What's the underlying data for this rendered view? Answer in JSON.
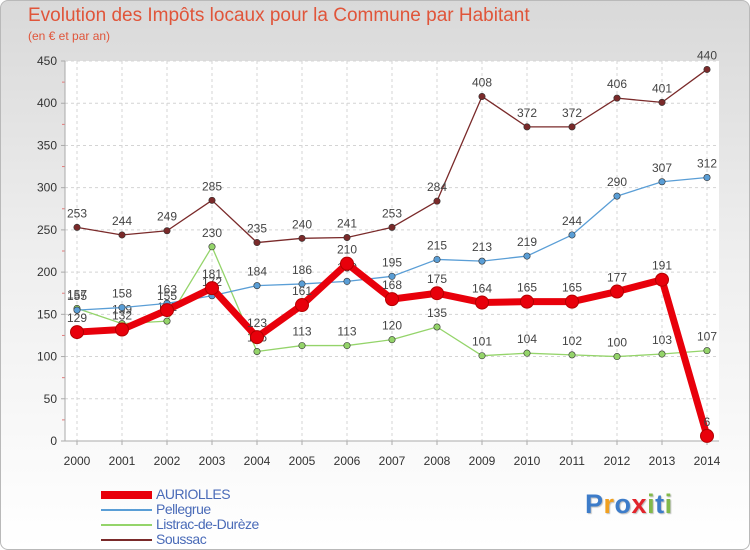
{
  "title": "Evolution des Impôts locaux pour la Commune par Habitant",
  "subtitle": "(en € et par an)",
  "brand": {
    "letters": [
      "P",
      "r",
      "o",
      "x",
      "i",
      "t",
      "i"
    ],
    "colors": [
      "#3d7cc9",
      "#f0a020",
      "#3d7cc9",
      "#e2242b",
      "#82b94a",
      "#3d7cc9",
      "#82b94a"
    ]
  },
  "chart_data": {
    "type": "line",
    "x": [
      "2000",
      "2001",
      "2002",
      "2003",
      "2004",
      "2005",
      "2006",
      "2007",
      "2008",
      "2009",
      "2010",
      "2011",
      "2012",
      "2013",
      "2014"
    ],
    "ylim": [
      0,
      450
    ],
    "yticks": [
      0,
      50,
      100,
      150,
      200,
      250,
      300,
      350,
      400,
      450
    ],
    "grid": true,
    "legend_position": "bottom-left",
    "series": [
      {
        "name": "AURIOLLES",
        "color": "#e8000b",
        "width": 7,
        "values": [
          129,
          132,
          155,
          181,
          123,
          161,
          210,
          168,
          175,
          164,
          165,
          165,
          177,
          191,
          6
        ]
      },
      {
        "name": "Pellegrue",
        "color": "#5a9ed6",
        "width": 1.3,
        "values": [
          155,
          158,
          163,
          172,
          184,
          186,
          189,
          195,
          215,
          213,
          219,
          244,
          290,
          307,
          312
        ]
      },
      {
        "name": "Listrac-de-Durèze",
        "color": "#94d46a",
        "width": 1.3,
        "values": [
          157,
          139,
          142,
          230,
          106,
          113,
          113,
          120,
          135,
          101,
          104,
          102,
          100,
          103,
          107
        ]
      },
      {
        "name": "Soussac",
        "color": "#7a2a2a",
        "width": 1.3,
        "values": [
          253,
          244,
          249,
          285,
          235,
          240,
          241,
          253,
          284,
          408,
          372,
          372,
          406,
          401,
          440
        ]
      }
    ]
  }
}
